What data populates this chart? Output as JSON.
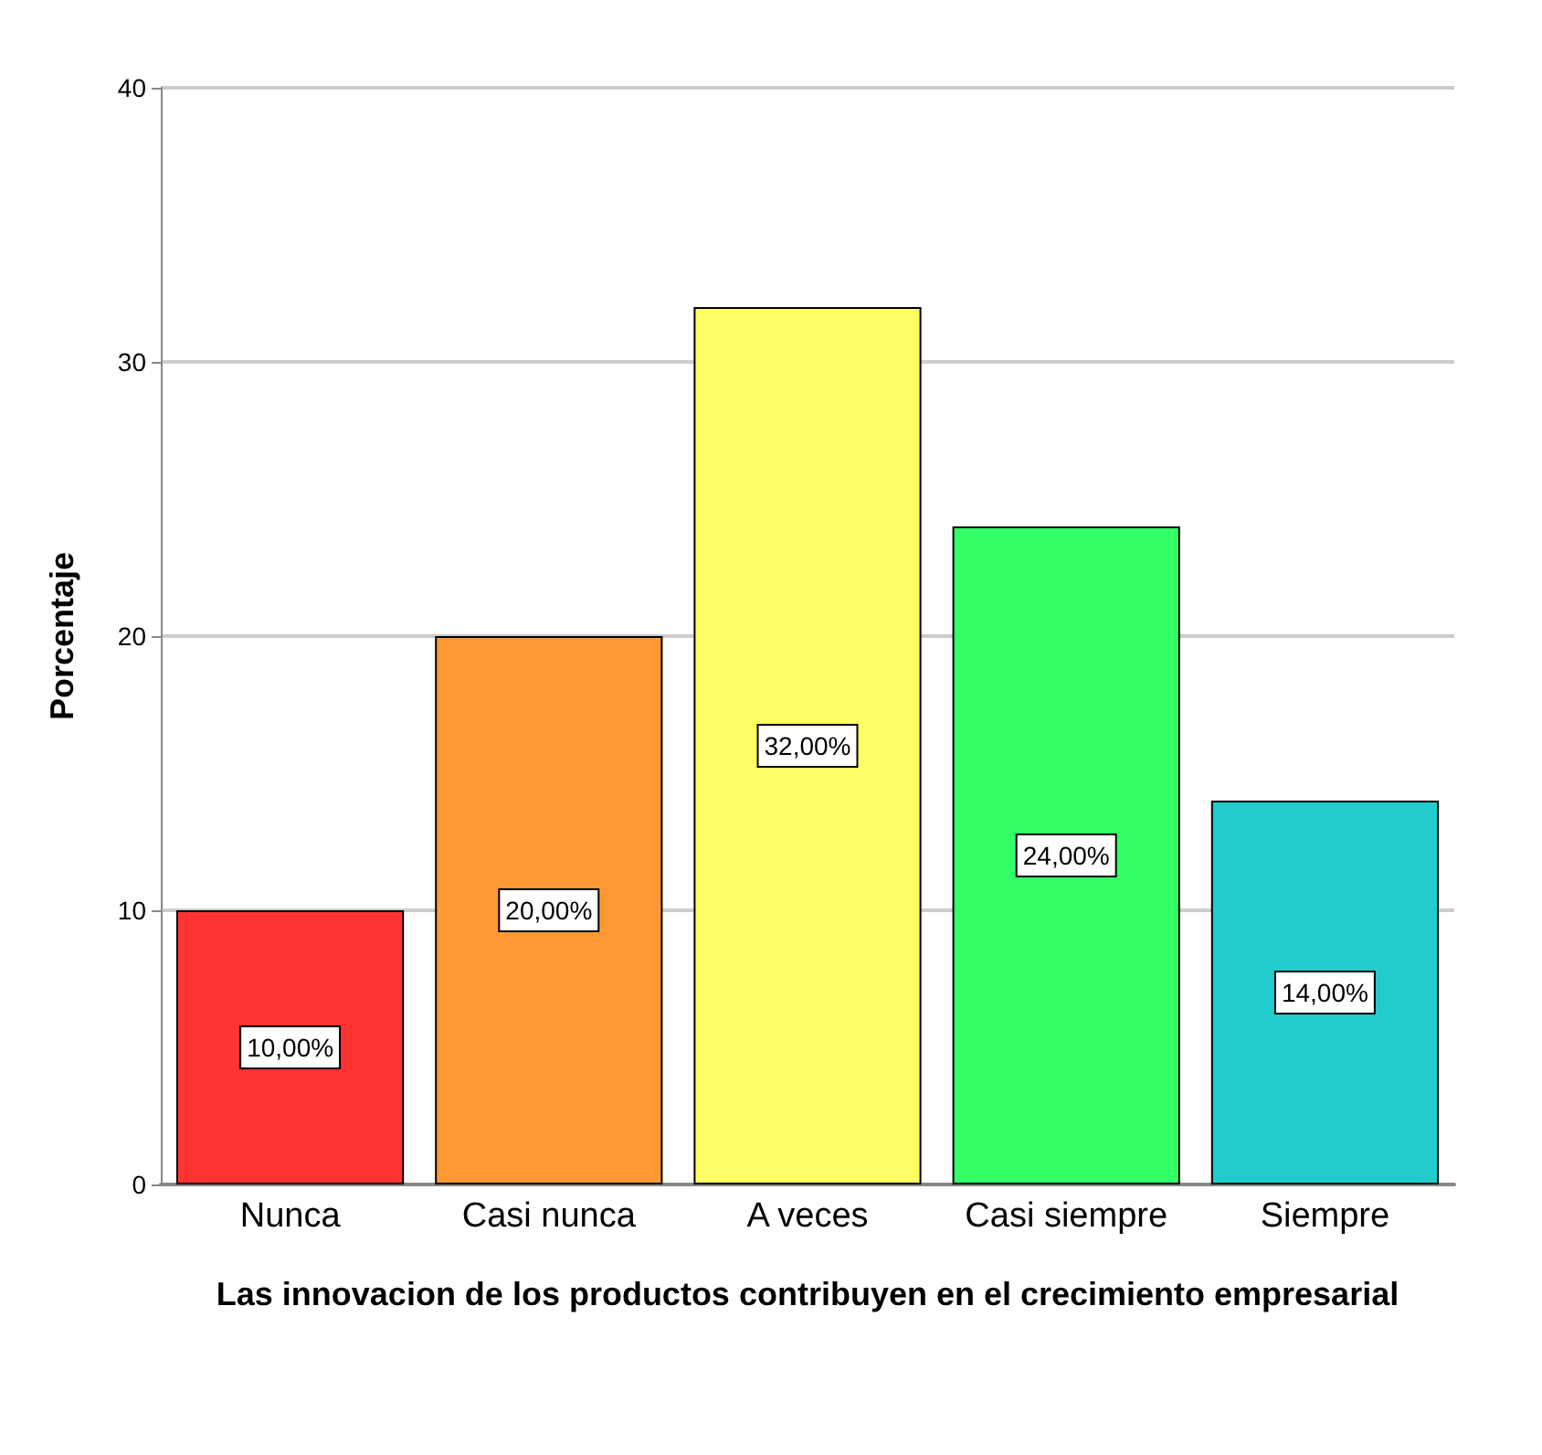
{
  "chart_data": {
    "type": "bar",
    "xlabel": "Las innovacion de los productos contribuyen en el crecimiento empresarial",
    "ylabel": "Porcentaje",
    "categories": [
      "Nunca",
      "Casi nunca",
      "A veces",
      "Casi siempre",
      "Siempre"
    ],
    "values": [
      10,
      20,
      32,
      24,
      14
    ],
    "colors": [
      "#ff3333",
      "#ff9933",
      "#ffff66",
      "#33ff66",
      "#22cccc"
    ],
    "value_labels": [
      "10,00%",
      "20,00%",
      "32,00%",
      "24,00%",
      "14,00%"
    ],
    "ylim": [
      0,
      40
    ],
    "yticks": [
      0,
      10,
      20,
      30,
      40
    ],
    "grid": "y"
  }
}
